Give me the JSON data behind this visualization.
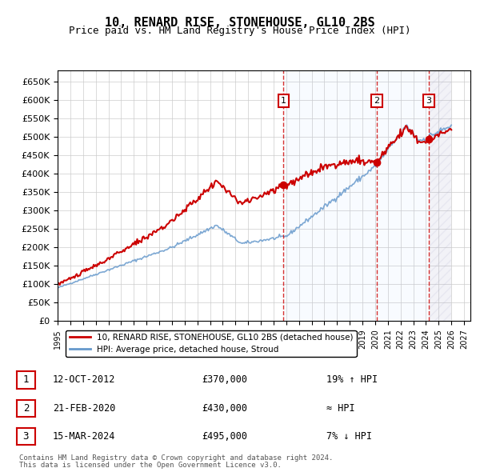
{
  "title": "10, RENARD RISE, STONEHOUSE, GL10 2BS",
  "subtitle": "Price paid vs. HM Land Registry's House Price Index (HPI)",
  "footer1": "Contains HM Land Registry data © Crown copyright and database right 2024.",
  "footer2": "This data is licensed under the Open Government Licence v3.0.",
  "legend_line1": "10, RENARD RISE, STONEHOUSE, GL10 2BS (detached house)",
  "legend_line2": "HPI: Average price, detached house, Stroud",
  "transactions": [
    {
      "num": 1,
      "date": "12-OCT-2012",
      "price": 370000,
      "hpi": "19% ↑ HPI",
      "year": 2012.79
    },
    {
      "num": 2,
      "date": "21-FEB-2020",
      "price": 430000,
      "hpi": "≈ HPI",
      "year": 2020.13
    },
    {
      "num": 3,
      "date": "15-MAR-2024",
      "price": 495000,
      "hpi": "7% ↓ HPI",
      "year": 2024.21
    }
  ],
  "ylim": [
    0,
    680000
  ],
  "xlim_start": 1995.0,
  "xlim_end": 2027.5,
  "yticks": [
    0,
    50000,
    100000,
    150000,
    200000,
    250000,
    300000,
    350000,
    400000,
    450000,
    500000,
    550000,
    600000,
    650000
  ],
  "ytick_labels": [
    "£0",
    "£50K",
    "£100K",
    "£150K",
    "£200K",
    "£250K",
    "£300K",
    "£350K",
    "£400K",
    "£450K",
    "£500K",
    "£550K",
    "£600K",
    "£650K"
  ],
  "red_color": "#cc0000",
  "blue_color": "#6699cc",
  "hatch_color": "#aaaacc"
}
